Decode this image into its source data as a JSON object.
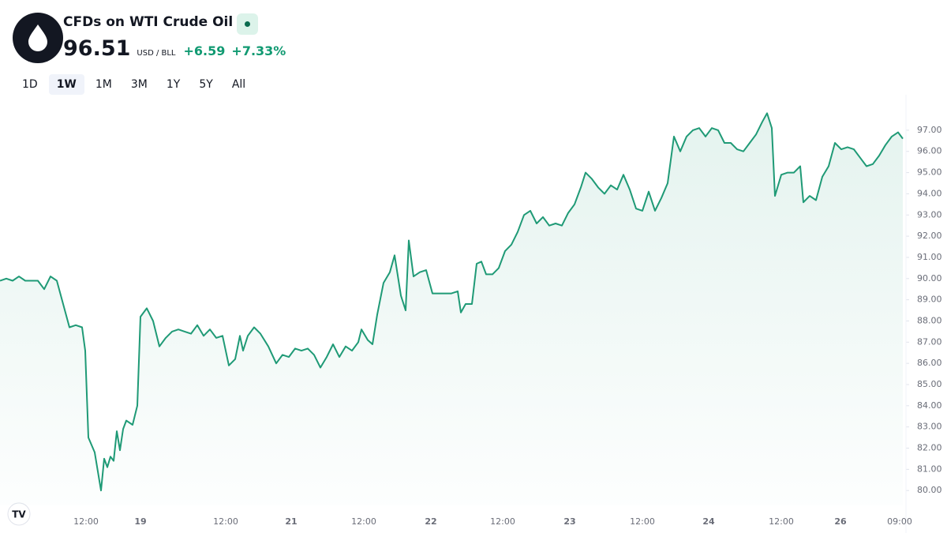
{
  "header": {
    "title": "CFDs on WTI Crude Oil",
    "price": "96.51",
    "unit": "USD / BLL",
    "change": "+6.59",
    "change_pct": "+7.33%"
  },
  "tabs": [
    "1D",
    "1W",
    "1M",
    "3M",
    "1Y",
    "5Y",
    "All"
  ],
  "active_tab": "1W",
  "chart_data": {
    "type": "area",
    "x": [
      0,
      8,
      16,
      24,
      32,
      40,
      48,
      56,
      64,
      72,
      80,
      88,
      96,
      104,
      108,
      112,
      120,
      128,
      132,
      136,
      140,
      144,
      148,
      152,
      156,
      160,
      168,
      174,
      178,
      186,
      194,
      202,
      210,
      218,
      226,
      234,
      242,
      250,
      258,
      266,
      274,
      282,
      290,
      298,
      304,
      308,
      314,
      322,
      330,
      340,
      350,
      358,
      366,
      374,
      382,
      390,
      398,
      406,
      414,
      422,
      430,
      438,
      446,
      454,
      458,
      466,
      472,
      478,
      486,
      494,
      500,
      508,
      514,
      518,
      524,
      532,
      540,
      548,
      556,
      564,
      572,
      580,
      584,
      590,
      598,
      604,
      610,
      616,
      624,
      632,
      640,
      648,
      656,
      664,
      672,
      680,
      688,
      696,
      704,
      712,
      720,
      728,
      736,
      742,
      750,
      758,
      766,
      774,
      782,
      790,
      798,
      806,
      814,
      822,
      830,
      838,
      846,
      854,
      862,
      870,
      878,
      886,
      894,
      902,
      910,
      918,
      926,
      934,
      942,
      950,
      958,
      966,
      972,
      978,
      982,
      990,
      998,
      1006,
      1014,
      1018,
      1026,
      1034,
      1042,
      1050,
      1058,
      1066,
      1074,
      1082,
      1090,
      1098,
      1106,
      1114,
      1122,
      1130,
      1138,
      1144
    ],
    "series": [
      {
        "color": "#1f9a76",
        "values": [
          89.9,
          90.0,
          89.9,
          90.1,
          89.9,
          89.9,
          89.9,
          89.5,
          90.1,
          89.9,
          88.8,
          87.7,
          87.8,
          87.7,
          86.6,
          82.5,
          81.8,
          80.0,
          81.5,
          81.1,
          81.6,
          81.4,
          82.8,
          81.9,
          82.9,
          83.3,
          83.1,
          84.0,
          88.2,
          88.6,
          88.0,
          86.8,
          87.2,
          87.5,
          87.6,
          87.5,
          87.4,
          87.8,
          87.3,
          87.6,
          87.2,
          87.3,
          85.9,
          86.2,
          87.3,
          86.6,
          87.3,
          87.7,
          87.4,
          86.8,
          86.0,
          86.4,
          86.3,
          86.7,
          86.6,
          86.7,
          86.4,
          85.8,
          86.3,
          86.9,
          86.3,
          86.8,
          86.6,
          87.0,
          87.6,
          87.1,
          86.9,
          88.3,
          89.8,
          90.3,
          91.1,
          89.2,
          88.5,
          91.8,
          90.1,
          90.3,
          90.4,
          89.3,
          89.3,
          89.3,
          89.3,
          89.4,
          88.4,
          88.8,
          88.8,
          90.7,
          90.8,
          90.2,
          90.2,
          90.5,
          91.3,
          91.6,
          92.2,
          93.0,
          93.2,
          92.6,
          92.9,
          92.5,
          92.6,
          92.5,
          93.1,
          93.5,
          94.3,
          95.0,
          94.7,
          94.3,
          94.0,
          94.4,
          94.2,
          94.9,
          94.2,
          93.3,
          93.2,
          94.1,
          93.2,
          93.8,
          94.5,
          96.7,
          96.0,
          96.7,
          97.0,
          97.1,
          96.7,
          97.1,
          97.0,
          96.4,
          96.4,
          96.1,
          96.0,
          96.4,
          96.8,
          97.4,
          97.8,
          97.1,
          93.9,
          94.9,
          95.0,
          95.0,
          95.3,
          93.6,
          93.9,
          93.7,
          94.8,
          95.3,
          96.4,
          96.1,
          96.2,
          96.1,
          95.7,
          95.3,
          95.4,
          95.8,
          96.3,
          96.7,
          96.9,
          96.6
        ]
      }
    ],
    "xlim": [
      0,
      1148
    ],
    "xticks": [
      {
        "value": 109,
        "label": "12:00"
      },
      {
        "value": 178,
        "label": "19"
      },
      {
        "value": 286,
        "label": "12:00"
      },
      {
        "value": 369,
        "label": "21"
      },
      {
        "value": 461,
        "label": "12:00"
      },
      {
        "value": 546,
        "label": "22"
      },
      {
        "value": 637,
        "label": "12:00"
      },
      {
        "value": 722,
        "label": "23"
      },
      {
        "value": 814,
        "label": "12:00"
      },
      {
        "value": 898,
        "label": "24"
      },
      {
        "value": 990,
        "label": "12:00"
      },
      {
        "value": 1065,
        "label": "26"
      },
      {
        "value": 1140,
        "label": "09:00"
      }
    ],
    "ylim": [
      79.3,
      98.3
    ],
    "yticks": [
      {
        "value": 80,
        "label": "80.00"
      },
      {
        "value": 81,
        "label": "81.00"
      },
      {
        "value": 82,
        "label": "82.00"
      },
      {
        "value": 83,
        "label": "83.00"
      },
      {
        "value": 84,
        "label": "84.00"
      },
      {
        "value": 85,
        "label": "85.00"
      },
      {
        "value": 86,
        "label": "86.00"
      },
      {
        "value": 87,
        "label": "87.00"
      },
      {
        "value": 88,
        "label": "88.00"
      },
      {
        "value": 89,
        "label": "89.00"
      },
      {
        "value": 90,
        "label": "90.00"
      },
      {
        "value": 91,
        "label": "91.00"
      },
      {
        "value": 92,
        "label": "92.00"
      },
      {
        "value": 93,
        "label": "93.00"
      },
      {
        "value": 94,
        "label": "94.00"
      },
      {
        "value": 95,
        "label": "95.00"
      },
      {
        "value": 96,
        "label": "96.00"
      },
      {
        "value": 97,
        "label": "97.00"
      }
    ]
  }
}
